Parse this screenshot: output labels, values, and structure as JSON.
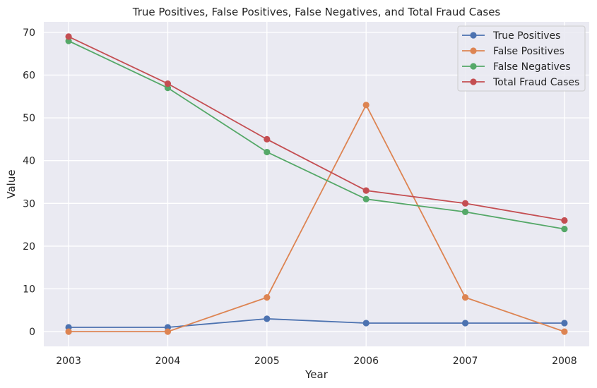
{
  "chart_data": {
    "type": "line",
    "title": "True Positives, False Positives, False Negatives, and Total Fraud Cases",
    "xlabel": "Year",
    "ylabel": "Value",
    "x": [
      2003,
      2004,
      2005,
      2006,
      2007,
      2008
    ],
    "x_tick_labels": [
      "2003",
      "2004",
      "2005",
      "2006",
      "2007",
      "2008"
    ],
    "y_ticks": [
      0,
      10,
      20,
      30,
      40,
      50,
      60,
      70
    ],
    "y_tick_labels": [
      "0",
      "10",
      "20",
      "30",
      "40",
      "50",
      "60",
      "70"
    ],
    "xlim": [
      2002.75,
      2008.25
    ],
    "ylim": [
      -3.45,
      72.45
    ],
    "grid": true,
    "legend_position": "top-right",
    "background_color": "#eaeaf2",
    "grid_color": "#ffffff",
    "series": [
      {
        "name": "True Positives",
        "color": "#4c72b0",
        "values": [
          1,
          1,
          3,
          2,
          2,
          2
        ]
      },
      {
        "name": "False Positives",
        "color": "#dd8452",
        "values": [
          0,
          0,
          8,
          53,
          8,
          0
        ]
      },
      {
        "name": "False Negatives",
        "color": "#55a868",
        "values": [
          68,
          57,
          42,
          31,
          28,
          24
        ]
      },
      {
        "name": "Total Fraud Cases",
        "color": "#c44e52",
        "values": [
          69,
          58,
          45,
          33,
          30,
          26
        ]
      }
    ]
  }
}
